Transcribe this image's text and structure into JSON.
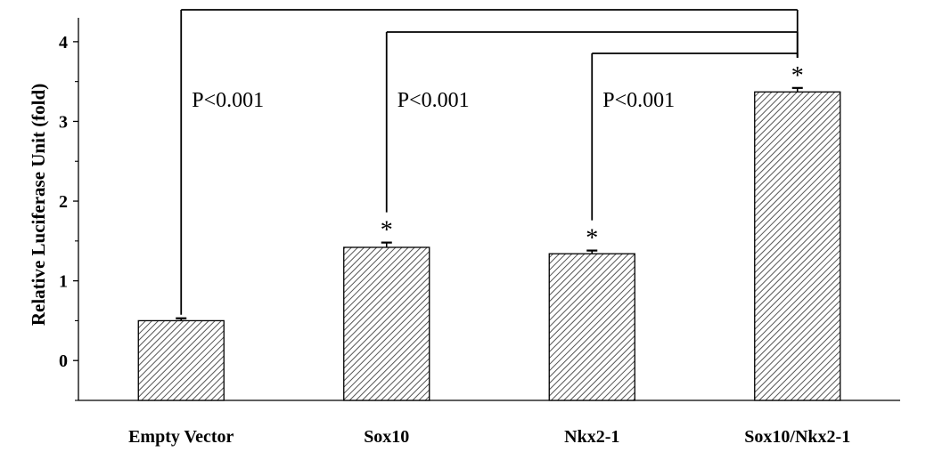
{
  "chart_data": {
    "type": "bar",
    "title": "",
    "xlabel": "",
    "ylabel": "Relative Luciferase Unit (fold)",
    "ylim": [
      -0.5,
      4.3
    ],
    "yticks": [
      "0",
      "1",
      "2",
      "3",
      "4"
    ],
    "categories": [
      "Empty Vector",
      "Sox10",
      "Nkx2-1",
      "Sox10/Nkx2-1"
    ],
    "values": [
      0.5,
      1.42,
      1.34,
      3.37
    ],
    "errors": [
      0.03,
      0.06,
      0.04,
      0.05
    ],
    "significance_markers": [
      "",
      "*",
      "*",
      "*"
    ],
    "comparisons": [
      {
        "from": "Empty Vector",
        "to": "Sox10/Nkx2-1",
        "label": "P<0.001"
      },
      {
        "from": "Sox10",
        "to": "Sox10/Nkx2-1",
        "label": "P<0.001"
      },
      {
        "from": "Nkx2-1",
        "to": "Sox10/Nkx2-1",
        "label": "P<0.001"
      }
    ],
    "bar_style": "diagonal hatch",
    "bar_color": "#ffffff",
    "hatch_color": "#555555",
    "grid": false,
    "legend": "none"
  }
}
